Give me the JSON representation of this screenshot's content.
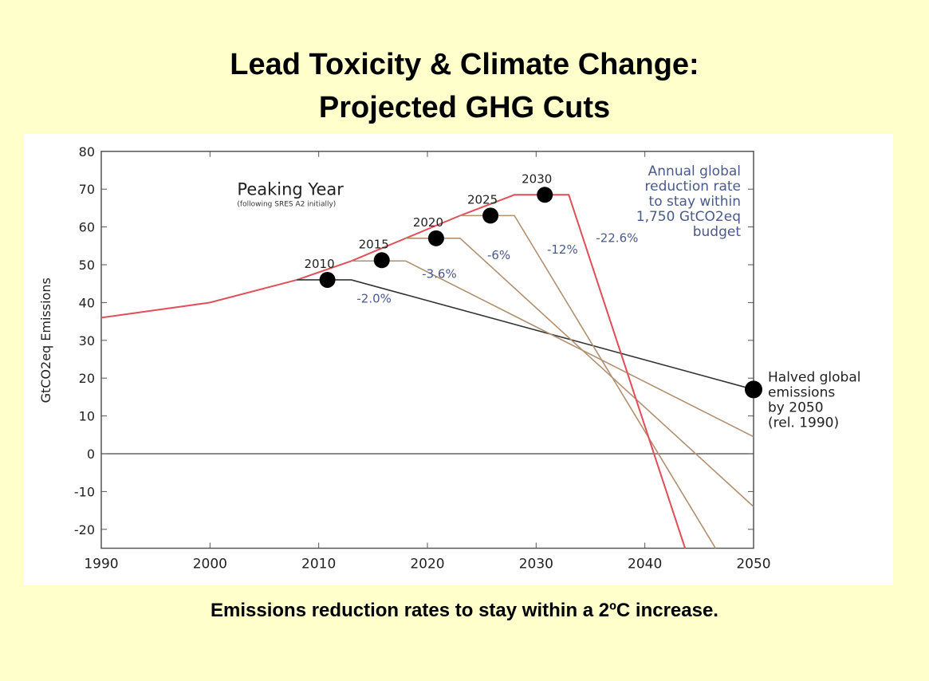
{
  "title_line1": "Lead Toxicity & Climate Change:",
  "title_line2": "Projected GHG Cuts",
  "caption": "Emissions reduction rates to stay within a 2ºC increase.",
  "chart_data": {
    "type": "line",
    "title": "Peaking Year",
    "subtitle": "(following SRES A2 initially)",
    "ylabel": "GtCO2eq Emissions",
    "xlabel": "",
    "xlim": [
      1990,
      2050
    ],
    "ylim": [
      -25,
      80
    ],
    "xticks": [
      1990,
      2000,
      2010,
      2020,
      2030,
      2040,
      2050
    ],
    "yticks": [
      80,
      70,
      60,
      50,
      40,
      30,
      20,
      10,
      0,
      -10,
      -20
    ],
    "grid": false,
    "annotation_budget": [
      "Annual global",
      "reduction rate",
      "to stay within",
      "1,750 GtCO2eq",
      "budget"
    ],
    "annotation_halved": [
      "Halved global",
      "emissions",
      "by 2050",
      "(rel. 1990)"
    ],
    "colors": {
      "baseline": "#e0505a",
      "black": "#333333",
      "tan": "#b09070",
      "label": "#4a5a8a"
    },
    "baseline": {
      "x": [
        1990,
        2000,
        2008,
        2013,
        2018,
        2023,
        2028,
        2033,
        2043.7
      ],
      "y": [
        36,
        40,
        46,
        51,
        57,
        63,
        68.5,
        68.5,
        -25
      ]
    },
    "series": [
      {
        "peak_label": "2010",
        "rate_label": "-2.0%",
        "color": "black",
        "x": [
          2008,
          2013,
          2050
        ],
        "y": [
          46,
          46,
          17
        ],
        "dot": [
          2010.8,
          46
        ]
      },
      {
        "peak_label": "2015",
        "rate_label": "-3.6%",
        "color": "tan",
        "x": [
          2013,
          2018,
          2050
        ],
        "y": [
          51,
          51,
          4.5
        ],
        "dot": [
          2015.8,
          51.2
        ]
      },
      {
        "peak_label": "2020",
        "rate_label": "-6%",
        "color": "tan",
        "x": [
          2018,
          2023,
          2050
        ],
        "y": [
          57,
          57,
          -14
        ],
        "dot": [
          2020.8,
          57
        ]
      },
      {
        "peak_label": "2025",
        "rate_label": "-12%",
        "color": "tan",
        "x": [
          2023,
          2028,
          2046.5
        ],
        "y": [
          63,
          63,
          -25
        ],
        "dot": [
          2025.8,
          63
        ]
      },
      {
        "peak_label": "2030",
        "rate_label": "-22.6%",
        "color": "baseline",
        "x": [
          2028,
          2033,
          2043.7
        ],
        "y": [
          68.5,
          68.5,
          -25
        ],
        "dot": [
          2030.8,
          68.5
        ]
      }
    ],
    "end_dot": [
      2050,
      17
    ]
  }
}
